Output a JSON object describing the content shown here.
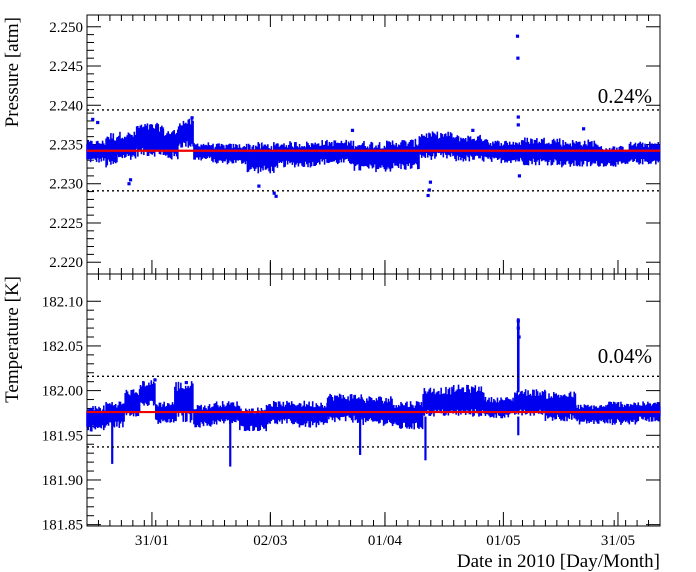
{
  "figure": {
    "x_axis_label": "Date in 2010 [Day/Month]"
  },
  "chart_data": [
    {
      "type": "scatter",
      "name": "pressure",
      "ylabel": "Pressure [atm]",
      "ylim": [
        2.2185,
        2.2515
      ],
      "yticks": [
        2.22,
        2.225,
        2.23,
        2.235,
        2.24,
        2.245,
        2.25
      ],
      "ytick_labels": [
        "2.220",
        "2.225",
        "2.230",
        "2.235",
        "2.240",
        "2.245",
        "2.250"
      ],
      "mean": 2.2342,
      "band": [
        2.2291,
        2.2394
      ],
      "band_label": "0.24%",
      "xlim": [
        0,
        150
      ],
      "segments": [
        {
          "x0": 0,
          "x1": 5,
          "low": 2.233,
          "high": 2.2352
        },
        {
          "x0": 5,
          "x1": 8,
          "low": 2.2325,
          "high": 2.236
        },
        {
          "x0": 8,
          "x1": 13,
          "low": 2.2335,
          "high": 2.2362
        },
        {
          "x0": 13,
          "x1": 20,
          "low": 2.234,
          "high": 2.2372
        },
        {
          "x0": 20,
          "x1": 24,
          "low": 2.2335,
          "high": 2.2365
        },
        {
          "x0": 24,
          "x1": 28,
          "low": 2.235,
          "high": 2.2378
        },
        {
          "x0": 28,
          "x1": 33,
          "low": 2.2332,
          "high": 2.235
        },
        {
          "x0": 33,
          "x1": 42,
          "low": 2.2328,
          "high": 2.2348
        },
        {
          "x0": 42,
          "x1": 50,
          "low": 2.2318,
          "high": 2.2348
        },
        {
          "x0": 50,
          "x1": 60,
          "low": 2.2325,
          "high": 2.235
        },
        {
          "x0": 60,
          "x1": 70,
          "low": 2.2328,
          "high": 2.2352
        },
        {
          "x0": 70,
          "x1": 80,
          "low": 2.232,
          "high": 2.235
        },
        {
          "x0": 80,
          "x1": 87,
          "low": 2.2322,
          "high": 2.2352
        },
        {
          "x0": 87,
          "x1": 96,
          "low": 2.2335,
          "high": 2.2362
        },
        {
          "x0": 96,
          "x1": 105,
          "low": 2.2332,
          "high": 2.2358
        },
        {
          "x0": 105,
          "x1": 114,
          "low": 2.233,
          "high": 2.2352
        },
        {
          "x0": 114,
          "x1": 124,
          "low": 2.2328,
          "high": 2.2355
        },
        {
          "x0": 124,
          "x1": 134,
          "low": 2.2325,
          "high": 2.2352
        },
        {
          "x0": 134,
          "x1": 142,
          "low": 2.2325,
          "high": 2.2345
        },
        {
          "x0": 142,
          "x1": 150,
          "low": 2.2328,
          "high": 2.235
        }
      ],
      "points": [
        [
          1.5,
          2.2382
        ],
        [
          2.8,
          2.2378
        ],
        [
          11.0,
          2.23
        ],
        [
          11.4,
          2.2305
        ],
        [
          49.0,
          2.2288
        ],
        [
          49.5,
          2.2284
        ],
        [
          45.0,
          2.2297
        ],
        [
          89.3,
          2.2285
        ],
        [
          89.6,
          2.2292
        ],
        [
          89.9,
          2.2302
        ],
        [
          69.5,
          2.2368
        ],
        [
          101.0,
          2.2368
        ],
        [
          112.7,
          2.2488
        ],
        [
          112.8,
          2.246
        ],
        [
          112.9,
          2.2385
        ],
        [
          112.9,
          2.2375
        ],
        [
          113.2,
          2.231
        ],
        [
          130.0,
          2.237
        ],
        [
          27.5,
          2.2384
        ]
      ]
    },
    {
      "type": "scatter",
      "name": "temperature",
      "ylabel": "Temperature [K]",
      "ylim": [
        181.8485,
        182.1305
      ],
      "yticks": [
        181.85,
        181.9,
        181.95,
        182.0,
        182.05,
        182.1
      ],
      "ytick_labels": [
        "181.85",
        "181.90",
        "181.95",
        "182.00",
        "182.05",
        "182.10"
      ],
      "mean": 181.976,
      "band": [
        181.937,
        182.016
      ],
      "band_label": "0.04%",
      "xlim": [
        0,
        150
      ],
      "xticks": [
        17,
        48,
        78,
        109,
        139
      ],
      "xtick_labels": [
        "31/01",
        "02/03",
        "01/04",
        "01/05",
        "31/05"
      ],
      "segments": [
        {
          "x0": 0,
          "x1": 5,
          "low": 181.958,
          "high": 181.98
        },
        {
          "x0": 5,
          "x1": 10,
          "low": 181.962,
          "high": 181.985
        },
        {
          "x0": 10,
          "x1": 14,
          "low": 181.975,
          "high": 181.998
        },
        {
          "x0": 14,
          "x1": 18,
          "low": 181.985,
          "high": 182.008
        },
        {
          "x0": 18,
          "x1": 23,
          "low": 181.965,
          "high": 181.985
        },
        {
          "x0": 23,
          "x1": 28,
          "low": 181.97,
          "high": 182.005
        },
        {
          "x0": 28,
          "x1": 33,
          "low": 181.962,
          "high": 181.982
        },
        {
          "x0": 33,
          "x1": 40,
          "low": 181.965,
          "high": 181.985
        },
        {
          "x0": 40,
          "x1": 47,
          "low": 181.958,
          "high": 181.978
        },
        {
          "x0": 47,
          "x1": 55,
          "low": 181.965,
          "high": 181.985
        },
        {
          "x0": 55,
          "x1": 63,
          "low": 181.962,
          "high": 181.985
        },
        {
          "x0": 63,
          "x1": 72,
          "low": 181.968,
          "high": 181.993
        },
        {
          "x0": 72,
          "x1": 80,
          "low": 181.965,
          "high": 181.99
        },
        {
          "x0": 80,
          "x1": 88,
          "low": 181.96,
          "high": 181.985
        },
        {
          "x0": 88,
          "x1": 96,
          "low": 181.975,
          "high": 182.0
        },
        {
          "x0": 96,
          "x1": 104,
          "low": 181.975,
          "high": 182.002
        },
        {
          "x0": 104,
          "x1": 112,
          "low": 181.972,
          "high": 181.99
        },
        {
          "x0": 112,
          "x1": 120,
          "low": 181.975,
          "high": 181.998
        },
        {
          "x0": 120,
          "x1": 128,
          "low": 181.97,
          "high": 181.995
        },
        {
          "x0": 128,
          "x1": 136,
          "low": 181.965,
          "high": 181.982
        },
        {
          "x0": 136,
          "x1": 144,
          "low": 181.965,
          "high": 181.985
        },
        {
          "x0": 144,
          "x1": 150,
          "low": 181.968,
          "high": 181.985
        }
      ],
      "dips": [
        {
          "x": 6.6,
          "y": 181.918
        },
        {
          "x": 37.5,
          "y": 181.915
        },
        {
          "x": 71.5,
          "y": 181.928
        },
        {
          "x": 88.6,
          "y": 181.922
        },
        {
          "x": 112.9,
          "y": 181.95
        }
      ],
      "spike": {
        "x": 112.9,
        "y0": 181.998,
        "y1": 182.081
      },
      "points": [
        [
          112.9,
          182.078
        ],
        [
          112.9,
          182.07
        ],
        [
          113.1,
          182.06
        ],
        [
          17.8,
          182.012
        ],
        [
          26.0,
          182.009
        ]
      ]
    }
  ]
}
